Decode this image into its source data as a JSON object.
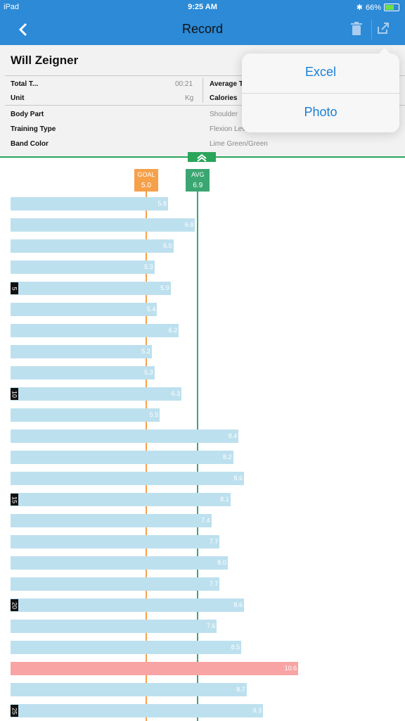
{
  "status": {
    "device": "iPad",
    "time": "9:25 AM",
    "battery": "66%"
  },
  "nav": {
    "title": "Record"
  },
  "info": {
    "name": "Will Zeigner",
    "total_time_label": "Total T...",
    "total_time_value": "00:21",
    "unit_label": "Unit",
    "unit_value": "Kg",
    "average_label": "Average T",
    "calories_label": "Calories",
    "body_part_label": "Body Part",
    "body_part_value": "Shoulder",
    "training_type_label": "Training Type",
    "training_type_value": "Flexion Lev",
    "band_color_label": "Band Color",
    "band_color_value": "Lime Green/Green"
  },
  "popover": {
    "excel": "Excel",
    "photo": "Photo"
  },
  "chart_data": {
    "type": "bar",
    "orientation": "horizontal",
    "goal": {
      "label": "GOAL",
      "value": "5.0",
      "color": "#f6a04a"
    },
    "avg": {
      "label": "AVG",
      "value": "6.9",
      "color": "#3aa672"
    },
    "values": [
      5.8,
      6.8,
      6.0,
      5.3,
      5.9,
      5.4,
      6.2,
      5.2,
      5.3,
      6.3,
      5.5,
      8.4,
      8.2,
      8.6,
      8.1,
      7.4,
      7.7,
      8.0,
      7.7,
      8.6,
      7.6,
      8.5,
      10.6,
      8.7,
      9.3
    ],
    "value_labels": [
      "5.8",
      "6.8",
      "6.0",
      "5.3",
      "5.9",
      "5.4",
      "6.2",
      "5.2",
      "5.3",
      "6.3",
      "5.5",
      "8.4",
      "8.2",
      "8.6",
      "8.1",
      "7.4",
      "7.7",
      "8.0",
      "7.7",
      "8.6",
      "7.6",
      "8.5",
      "10.6",
      "8.7",
      "9.3"
    ],
    "index_labels": [
      {
        "row": 5,
        "label": "5"
      },
      {
        "row": 10,
        "label": "10"
      },
      {
        "row": 15,
        "label": "15"
      },
      {
        "row": 20,
        "label": "20"
      },
      {
        "row": 25,
        "label": "25"
      }
    ],
    "bar_color": "#bde0ee",
    "highlight_color": "#f9a4a4",
    "highlight_index": 22
  }
}
